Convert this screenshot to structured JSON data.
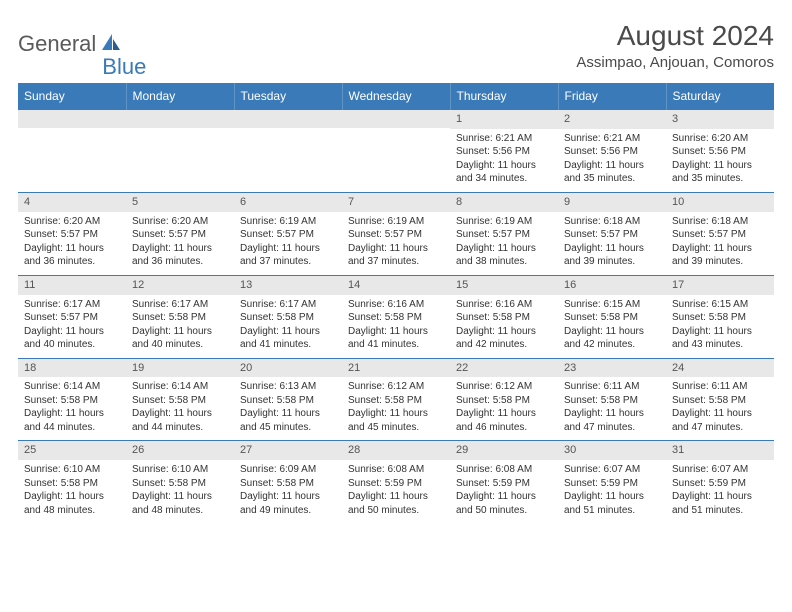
{
  "logo": {
    "word1": "General",
    "word2": "Blue"
  },
  "title": "August 2024",
  "location": "Assimpao, Anjouan, Comoros",
  "colors": {
    "header_bg": "#3a7ab8",
    "header_text": "#ffffff",
    "daynum_bg": "#e8e8e8",
    "daynum_text": "#555555",
    "body_text": "#333333",
    "border": "#3a7ab8",
    "logo_gray": "#5a5a5a",
    "logo_blue": "#3a7ab8"
  },
  "weekdays": [
    "Sunday",
    "Monday",
    "Tuesday",
    "Wednesday",
    "Thursday",
    "Friday",
    "Saturday"
  ],
  "weeks": [
    [
      null,
      null,
      null,
      null,
      {
        "d": "1",
        "sr": "6:21 AM",
        "ss": "5:56 PM",
        "dl": "11 hours and 34 minutes."
      },
      {
        "d": "2",
        "sr": "6:21 AM",
        "ss": "5:56 PM",
        "dl": "11 hours and 35 minutes."
      },
      {
        "d": "3",
        "sr": "6:20 AM",
        "ss": "5:56 PM",
        "dl": "11 hours and 35 minutes."
      }
    ],
    [
      {
        "d": "4",
        "sr": "6:20 AM",
        "ss": "5:57 PM",
        "dl": "11 hours and 36 minutes."
      },
      {
        "d": "5",
        "sr": "6:20 AM",
        "ss": "5:57 PM",
        "dl": "11 hours and 36 minutes."
      },
      {
        "d": "6",
        "sr": "6:19 AM",
        "ss": "5:57 PM",
        "dl": "11 hours and 37 minutes."
      },
      {
        "d": "7",
        "sr": "6:19 AM",
        "ss": "5:57 PM",
        "dl": "11 hours and 37 minutes."
      },
      {
        "d": "8",
        "sr": "6:19 AM",
        "ss": "5:57 PM",
        "dl": "11 hours and 38 minutes."
      },
      {
        "d": "9",
        "sr": "6:18 AM",
        "ss": "5:57 PM",
        "dl": "11 hours and 39 minutes."
      },
      {
        "d": "10",
        "sr": "6:18 AM",
        "ss": "5:57 PM",
        "dl": "11 hours and 39 minutes."
      }
    ],
    [
      {
        "d": "11",
        "sr": "6:17 AM",
        "ss": "5:57 PM",
        "dl": "11 hours and 40 minutes."
      },
      {
        "d": "12",
        "sr": "6:17 AM",
        "ss": "5:58 PM",
        "dl": "11 hours and 40 minutes."
      },
      {
        "d": "13",
        "sr": "6:17 AM",
        "ss": "5:58 PM",
        "dl": "11 hours and 41 minutes."
      },
      {
        "d": "14",
        "sr": "6:16 AM",
        "ss": "5:58 PM",
        "dl": "11 hours and 41 minutes."
      },
      {
        "d": "15",
        "sr": "6:16 AM",
        "ss": "5:58 PM",
        "dl": "11 hours and 42 minutes."
      },
      {
        "d": "16",
        "sr": "6:15 AM",
        "ss": "5:58 PM",
        "dl": "11 hours and 42 minutes."
      },
      {
        "d": "17",
        "sr": "6:15 AM",
        "ss": "5:58 PM",
        "dl": "11 hours and 43 minutes."
      }
    ],
    [
      {
        "d": "18",
        "sr": "6:14 AM",
        "ss": "5:58 PM",
        "dl": "11 hours and 44 minutes."
      },
      {
        "d": "19",
        "sr": "6:14 AM",
        "ss": "5:58 PM",
        "dl": "11 hours and 44 minutes."
      },
      {
        "d": "20",
        "sr": "6:13 AM",
        "ss": "5:58 PM",
        "dl": "11 hours and 45 minutes."
      },
      {
        "d": "21",
        "sr": "6:12 AM",
        "ss": "5:58 PM",
        "dl": "11 hours and 45 minutes."
      },
      {
        "d": "22",
        "sr": "6:12 AM",
        "ss": "5:58 PM",
        "dl": "11 hours and 46 minutes."
      },
      {
        "d": "23",
        "sr": "6:11 AM",
        "ss": "5:58 PM",
        "dl": "11 hours and 47 minutes."
      },
      {
        "d": "24",
        "sr": "6:11 AM",
        "ss": "5:58 PM",
        "dl": "11 hours and 47 minutes."
      }
    ],
    [
      {
        "d": "25",
        "sr": "6:10 AM",
        "ss": "5:58 PM",
        "dl": "11 hours and 48 minutes."
      },
      {
        "d": "26",
        "sr": "6:10 AM",
        "ss": "5:58 PM",
        "dl": "11 hours and 48 minutes."
      },
      {
        "d": "27",
        "sr": "6:09 AM",
        "ss": "5:58 PM",
        "dl": "11 hours and 49 minutes."
      },
      {
        "d": "28",
        "sr": "6:08 AM",
        "ss": "5:59 PM",
        "dl": "11 hours and 50 minutes."
      },
      {
        "d": "29",
        "sr": "6:08 AM",
        "ss": "5:59 PM",
        "dl": "11 hours and 50 minutes."
      },
      {
        "d": "30",
        "sr": "6:07 AM",
        "ss": "5:59 PM",
        "dl": "11 hours and 51 minutes."
      },
      {
        "d": "31",
        "sr": "6:07 AM",
        "ss": "5:59 PM",
        "dl": "11 hours and 51 minutes."
      }
    ]
  ],
  "labels": {
    "sunrise": "Sunrise:",
    "sunset": "Sunset:",
    "daylight": "Daylight:"
  }
}
